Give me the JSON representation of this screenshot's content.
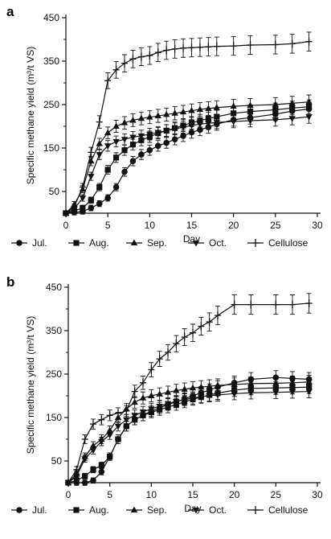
{
  "chart_data": [
    {
      "type": "line",
      "panel": "a",
      "xlabel": "Day",
      "ylabel": "Specific methane yield (m³/t VS)",
      "xlim": [
        0,
        30
      ],
      "ylim": [
        0,
        450
      ],
      "xticks": [
        0,
        5,
        10,
        15,
        20,
        25,
        30
      ],
      "yticks": [
        50,
        150,
        250,
        350,
        450
      ],
      "grid": false,
      "legend": "bottom",
      "x": [
        0,
        1,
        2,
        3,
        4,
        5,
        6,
        7,
        8,
        9,
        10,
        11,
        12,
        13,
        14,
        15,
        16,
        17,
        18,
        20,
        22,
        25,
        27,
        29
      ],
      "series": [
        {
          "name": "Jul.",
          "marker": "circle",
          "values": [
            0,
            2,
            4,
            12,
            22,
            35,
            60,
            95,
            120,
            135,
            145,
            155,
            162,
            170,
            178,
            186,
            192,
            198,
            205,
            215,
            220,
            228,
            235,
            240
          ]
        },
        {
          "name": "Aug.",
          "marker": "square",
          "values": [
            0,
            5,
            12,
            30,
            60,
            100,
            128,
            145,
            158,
            168,
            176,
            184,
            190,
            196,
            202,
            208,
            213,
            218,
            222,
            230,
            234,
            238,
            242,
            245
          ]
        },
        {
          "name": "Sep.",
          "marker": "triangle-up",
          "values": [
            0,
            20,
            55,
            120,
            160,
            185,
            200,
            208,
            214,
            218,
            221,
            224,
            227,
            230,
            233,
            236,
            239,
            241,
            243,
            246,
            248,
            250,
            253,
            256
          ]
        },
        {
          "name": "Oct.",
          "marker": "triangle-down",
          "values": [
            0,
            10,
            35,
            85,
            135,
            155,
            165,
            170,
            175,
            178,
            182,
            186,
            190,
            194,
            198,
            202,
            205,
            207,
            209,
            211,
            213,
            215,
            218,
            222
          ]
        },
        {
          "name": "Cellulose",
          "marker": "plus",
          "values": [
            0,
            15,
            60,
            140,
            210,
            305,
            330,
            345,
            355,
            360,
            363,
            370,
            375,
            378,
            380,
            381,
            382,
            383,
            384,
            385,
            387,
            388,
            390,
            395
          ]
        }
      ]
    },
    {
      "type": "line",
      "panel": "b",
      "xlabel": "Day",
      "ylabel": "Specific methane yield (m³/t VS)",
      "xlim": [
        0,
        30
      ],
      "ylim": [
        0,
        450
      ],
      "xticks": [
        0,
        5,
        10,
        15,
        20,
        25,
        30
      ],
      "yticks": [
        50,
        150,
        250,
        350,
        450
      ],
      "grid": false,
      "legend": "bottom",
      "x": [
        0,
        1,
        2,
        3,
        4,
        5,
        6,
        7,
        8,
        9,
        10,
        11,
        12,
        13,
        14,
        15,
        16,
        17,
        18,
        20,
        22,
        25,
        27,
        29
      ],
      "series": [
        {
          "name": "Jul.",
          "marker": "circle",
          "values": [
            0,
            0,
            0,
            5,
            25,
            60,
            100,
            130,
            145,
            155,
            165,
            172,
            180,
            186,
            193,
            200,
            207,
            213,
            220,
            230,
            238,
            242,
            240,
            238
          ]
        },
        {
          "name": "Aug.",
          "marker": "square",
          "values": [
            0,
            5,
            15,
            30,
            40,
            60,
            100,
            130,
            145,
            155,
            162,
            168,
            174,
            180,
            186,
            192,
            197,
            202,
            206,
            213,
            217,
            218,
            219,
            220
          ]
        },
        {
          "name": "Sep.",
          "marker": "triangle-up",
          "values": [
            0,
            20,
            60,
            85,
            100,
            120,
            150,
            170,
            185,
            195,
            200,
            204,
            208,
            212,
            215,
            218,
            220,
            222,
            224,
            226,
            228,
            229,
            230,
            232
          ]
        },
        {
          "name": "Oct.",
          "marker": "triangle-down",
          "values": [
            0,
            15,
            55,
            75,
            95,
            110,
            130,
            145,
            155,
            163,
            170,
            176,
            182,
            187,
            191,
            195,
            198,
            200,
            202,
            205,
            207,
            208,
            209,
            210
          ]
        },
        {
          "name": "Cellulose",
          "marker": "plus",
          "values": [
            0,
            30,
            100,
            135,
            145,
            155,
            160,
            165,
            210,
            230,
            260,
            285,
            300,
            320,
            335,
            345,
            360,
            370,
            385,
            410,
            410,
            410,
            410,
            413
          ]
        }
      ]
    }
  ]
}
